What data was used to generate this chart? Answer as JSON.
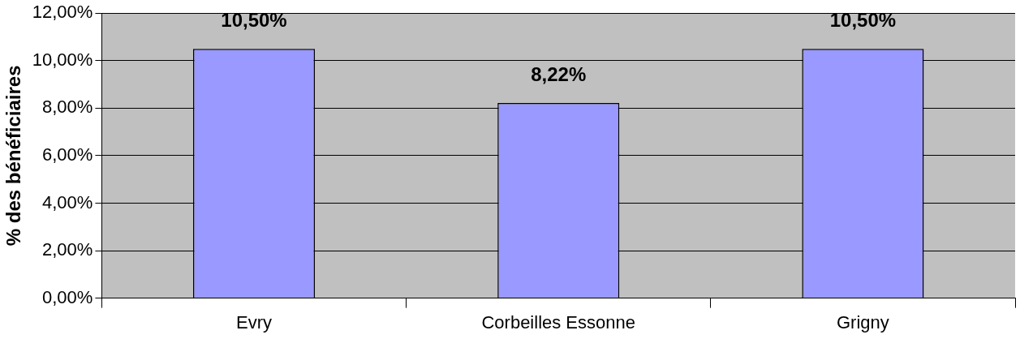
{
  "chart_data": {
    "type": "bar",
    "ylabel": "% des bénéficiaires",
    "categories": [
      "Evry",
      "Corbeilles Essonne",
      "Grigny"
    ],
    "values": [
      10.5,
      8.22,
      10.5
    ],
    "color": "#9999ff",
    "value_labels": [
      "10,50%",
      "8,22%",
      "10,50%"
    ],
    "ylim": [
      0,
      12
    ],
    "yticks": [
      {
        "value": 0,
        "label": "0,00%"
      },
      {
        "value": 2,
        "label": "2,00%"
      },
      {
        "value": 4,
        "label": "4,00%"
      },
      {
        "value": 6,
        "label": "6,00%"
      },
      {
        "value": 8,
        "label": "8,00%"
      },
      {
        "value": 10,
        "label": "10,00%"
      },
      {
        "value": 12,
        "label": "12,00%"
      }
    ],
    "grid": "y",
    "legend": false
  }
}
